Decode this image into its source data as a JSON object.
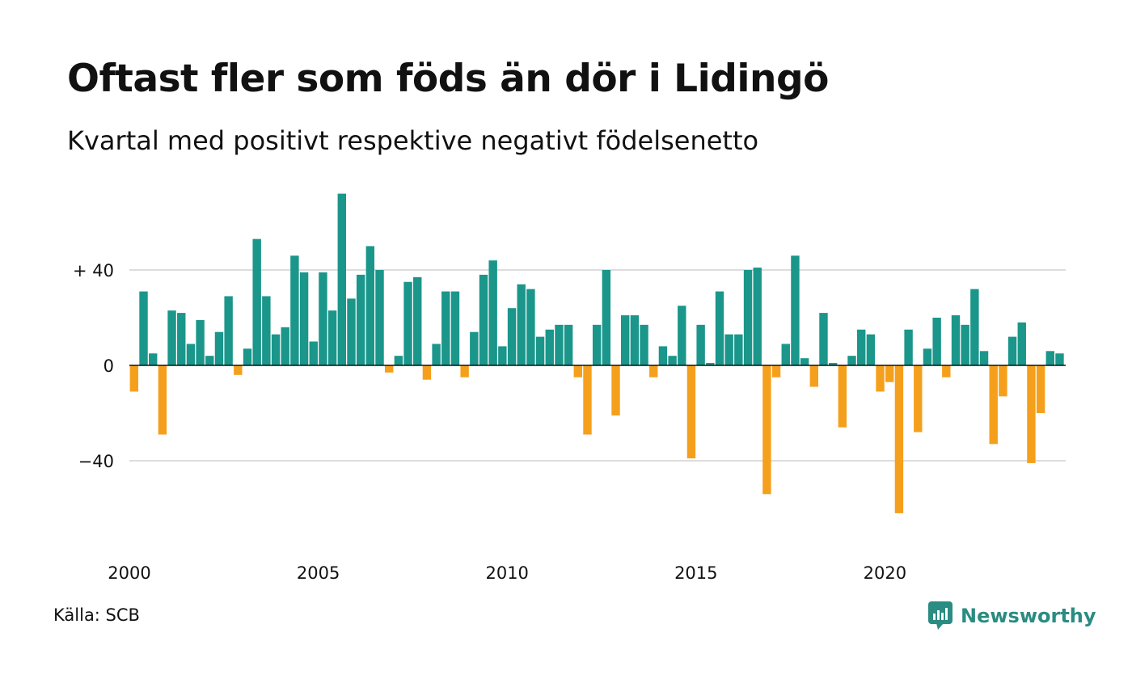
{
  "title": "Oftast fler som föds än dör i Lidingö",
  "subtitle": "Kvartal med positivt respektive negativt födelsenetto",
  "source": "Källa: SCB",
  "brand": {
    "name": "Newsworthy",
    "icon": "newsworthy-logo-icon"
  },
  "colors": {
    "positive": "#1a968a",
    "negative": "#f5a01c",
    "grid": "#dddddd"
  },
  "chart_data": {
    "type": "bar",
    "title": "Oftast fler som föds än dör i Lidingö",
    "subtitle": "Kvartal med positivt respektive negativt födelsenetto",
    "xlabel": "",
    "ylabel": "",
    "ylim": [
      -72,
      72
    ],
    "grid": true,
    "x_start_year": 2000,
    "x_tick_labels": [
      "2000",
      "2005",
      "2010",
      "2015",
      "2020"
    ],
    "y_ticks": [
      {
        "value": 40,
        "label": "+ 40"
      },
      {
        "value": 0,
        "label": "0"
      },
      {
        "value": -40,
        "label": "−40"
      }
    ],
    "values": [
      -11,
      31,
      5,
      -29,
      23,
      22,
      9,
      19,
      4,
      14,
      29,
      -4,
      7,
      53,
      29,
      13,
      16,
      46,
      39,
      10,
      39,
      23,
      72,
      28,
      38,
      50,
      40,
      -3,
      4,
      35,
      37,
      -6,
      9,
      31,
      31,
      -5,
      14,
      38,
      44,
      8,
      24,
      34,
      32,
      12,
      15,
      17,
      17,
      -5,
      -29,
      17,
      40,
      -21,
      21,
      21,
      17,
      -5,
      8,
      4,
      25,
      -39,
      17,
      1,
      31,
      13,
      13,
      40,
      41,
      -54,
      -5,
      9,
      46,
      3,
      -9,
      22,
      1,
      -26,
      4,
      15,
      13,
      -11,
      -7,
      -62,
      15,
      -28,
      7,
      20,
      -5,
      21,
      17,
      32,
      6,
      -33,
      -13,
      12,
      18,
      -41,
      -20,
      6,
      5
    ]
  }
}
